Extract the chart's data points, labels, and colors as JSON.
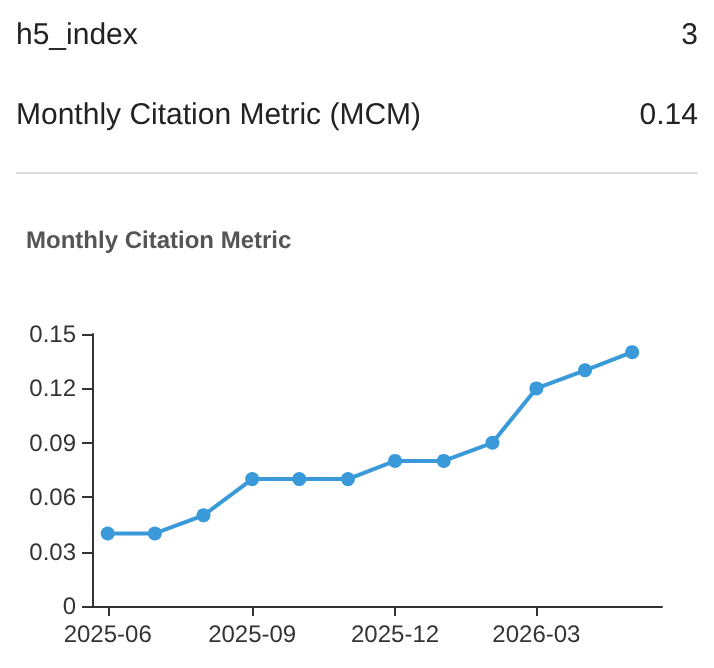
{
  "chart_data": [
    {
      "type": "other",
      "categories": [
        "h5_index",
        "Monthly Citation Metric (MCM)"
      ],
      "values": [
        3,
        0.14
      ],
      "data_labels": true
    },
    {
      "type": "line",
      "title": "Monthly Citation Metric",
      "x": [
        "2025-06",
        "2025-07",
        "2025-08",
        "2025-09",
        "2025-10",
        "2025-11",
        "2025-12",
        "2026-01",
        "2026-02",
        "2026-03",
        "2026-04",
        "2026-05"
      ],
      "series": [
        {
          "color": "#3a9ad9",
          "values": [
            0.04,
            0.04,
            0.05,
            0.07,
            0.07,
            0.07,
            0.08,
            0.08,
            0.09,
            0.12,
            0.13,
            0.14
          ]
        }
      ],
      "xlim": [
        "2025-05-22",
        "2026-05-20"
      ],
      "xticks": [
        "2025-06",
        "2025-09",
        "2025-12",
        "2026-03"
      ],
      "ylim": [
        0,
        0.15
      ],
      "yticks": [
        0,
        0.03,
        0.06,
        0.09,
        0.12,
        0.15
      ],
      "grid": false,
      "marker": "circle",
      "line_style": "solid"
    }
  ]
}
